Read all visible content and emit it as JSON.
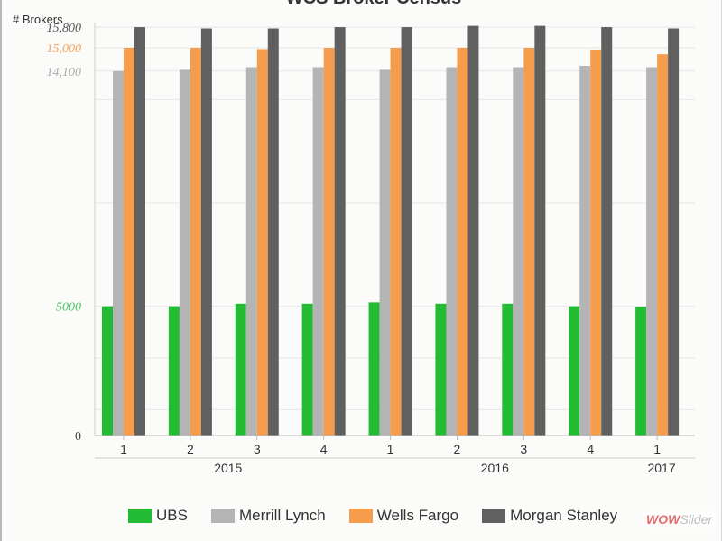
{
  "chart_data": {
    "type": "bar",
    "title": "WCS Broker Census",
    "ylabel": "# Brokers",
    "ylim": [
      0,
      16500
    ],
    "highlighted_ticks": [
      {
        "value": 15800,
        "label": "15,800",
        "color": "#555555"
      },
      {
        "value": 15000,
        "label": "15,000",
        "color": "#f5a25d"
      },
      {
        "value": 14100,
        "label": "14,100",
        "color": "#aaaaaa"
      },
      {
        "value": 5000,
        "label": "5000",
        "color": "#46c45a"
      },
      {
        "value": 0,
        "label": "0",
        "color": "#444444"
      }
    ],
    "categories": [
      "1",
      "2",
      "3",
      "4",
      "1",
      "2",
      "3",
      "4",
      "1"
    ],
    "years": [
      {
        "label": "2015",
        "start": 0,
        "end": 3
      },
      {
        "label": "2016",
        "start": 4,
        "end": 7
      },
      {
        "label": "2017",
        "start": 8,
        "end": 8
      }
    ],
    "series": [
      {
        "name": "UBS",
        "color": "#22bb33",
        "values": [
          5000,
          5000,
          5100,
          5100,
          5150,
          5100,
          5100,
          5000,
          4980
        ]
      },
      {
        "name": "Merrill Lynch",
        "color": "#b4b4b4",
        "values": [
          14100,
          14150,
          14250,
          14250,
          14150,
          14250,
          14250,
          14300,
          14250
        ]
      },
      {
        "name": "Wells Fargo",
        "color": "#f59c4d",
        "values": [
          15000,
          15000,
          14950,
          15000,
          15000,
          15000,
          15000,
          14900,
          14750
        ]
      },
      {
        "name": "Morgan Stanley",
        "color": "#606060",
        "values": [
          15800,
          15750,
          15750,
          15800,
          15800,
          15850,
          15850,
          15800,
          15750
        ]
      }
    ]
  },
  "watermark": {
    "accent": "WOW",
    "rest": "Slider"
  }
}
